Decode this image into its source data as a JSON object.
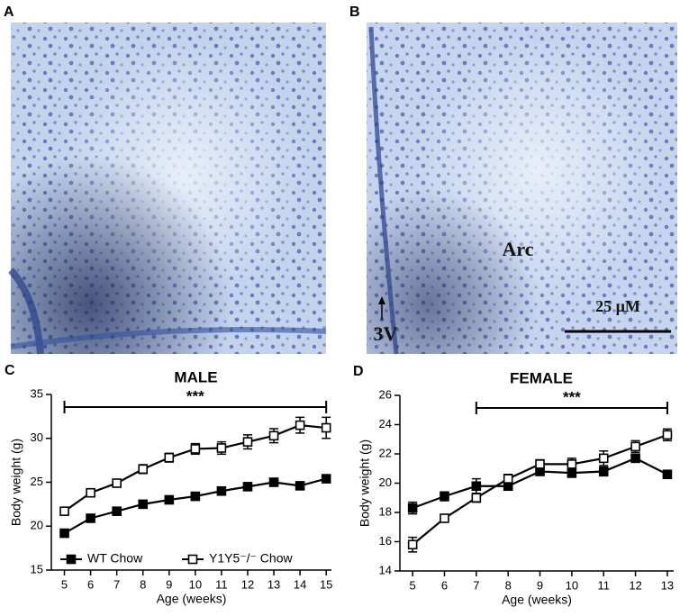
{
  "panels": [
    {
      "label": "A"
    },
    {
      "label": "B",
      "annotations": [
        "Arc",
        "3V",
        "25 µM"
      ]
    }
  ],
  "chart_data": [
    {
      "type": "line",
      "panel": "C",
      "title": "MALE",
      "xlabel": "Age (weeks)",
      "ylabel": "Body weight (g)",
      "x": [
        5,
        6,
        7,
        8,
        9,
        10,
        11,
        12,
        13,
        14,
        15
      ],
      "xlim": [
        4.5,
        15.2
      ],
      "xticks": [
        5,
        6,
        7,
        8,
        9,
        10,
        11,
        12,
        13,
        14,
        15
      ],
      "ylim": [
        15,
        35
      ],
      "yticks": [
        15,
        20,
        25,
        30,
        35
      ],
      "legend": "lower left",
      "significance": {
        "text": "***",
        "x_start": 5,
        "x_end": 15
      },
      "series": [
        {
          "name": "WT Chow",
          "color": "#000000",
          "marker": "filled-square",
          "values": [
            19.2,
            20.9,
            21.7,
            22.5,
            23.0,
            23.4,
            24.0,
            24.5,
            25.0,
            24.6,
            25.4
          ],
          "errors": [
            0.3,
            0.3,
            0.2,
            0.2,
            0.2,
            0.2,
            0.2,
            0.3,
            0.3,
            0.3,
            0.3
          ]
        },
        {
          "name": "Y1Y5⁻/⁻ Chow",
          "color": "#000000",
          "marker": "open-square",
          "values": [
            21.7,
            23.8,
            24.9,
            26.5,
            27.8,
            28.8,
            28.9,
            29.6,
            30.3,
            31.5,
            31.2
          ],
          "errors": [
            0.3,
            0.4,
            0.4,
            0.5,
            0.5,
            0.6,
            0.7,
            0.8,
            0.8,
            0.9,
            1.2
          ]
        }
      ]
    },
    {
      "type": "line",
      "panel": "D",
      "title": "FEMALE",
      "xlabel": "Age (weeks)",
      "ylabel": "Body weight (g)",
      "x": [
        5,
        6,
        7,
        8,
        9,
        10,
        11,
        12,
        13
      ],
      "xlim": [
        4.6,
        13.2
      ],
      "xticks": [
        5,
        6,
        7,
        8,
        9,
        10,
        11,
        12,
        13
      ],
      "ylim": [
        14,
        26
      ],
      "yticks": [
        14,
        16,
        18,
        20,
        22,
        24,
        26
      ],
      "significance": {
        "text": "***",
        "x_start": 7,
        "x_end": 13
      },
      "series": [
        {
          "name": "WT Chow",
          "color": "#000000",
          "marker": "filled-square",
          "values": [
            18.3,
            19.1,
            19.8,
            19.8,
            20.8,
            20.7,
            20.8,
            21.7,
            20.6
          ],
          "errors": [
            0.4,
            0.3,
            0.5,
            0.2,
            0.2,
            0.3,
            0.3,
            0.2,
            0.1
          ]
        },
        {
          "name": "Y1Y5⁻/⁻ Chow",
          "color": "#000000",
          "marker": "open-square",
          "values": [
            15.8,
            17.6,
            19.0,
            20.3,
            21.3,
            21.3,
            21.7,
            22.5,
            23.3
          ],
          "errors": [
            0.5,
            0.2,
            0.3,
            0.3,
            0.3,
            0.4,
            0.5,
            0.4,
            0.4
          ]
        }
      ]
    }
  ]
}
